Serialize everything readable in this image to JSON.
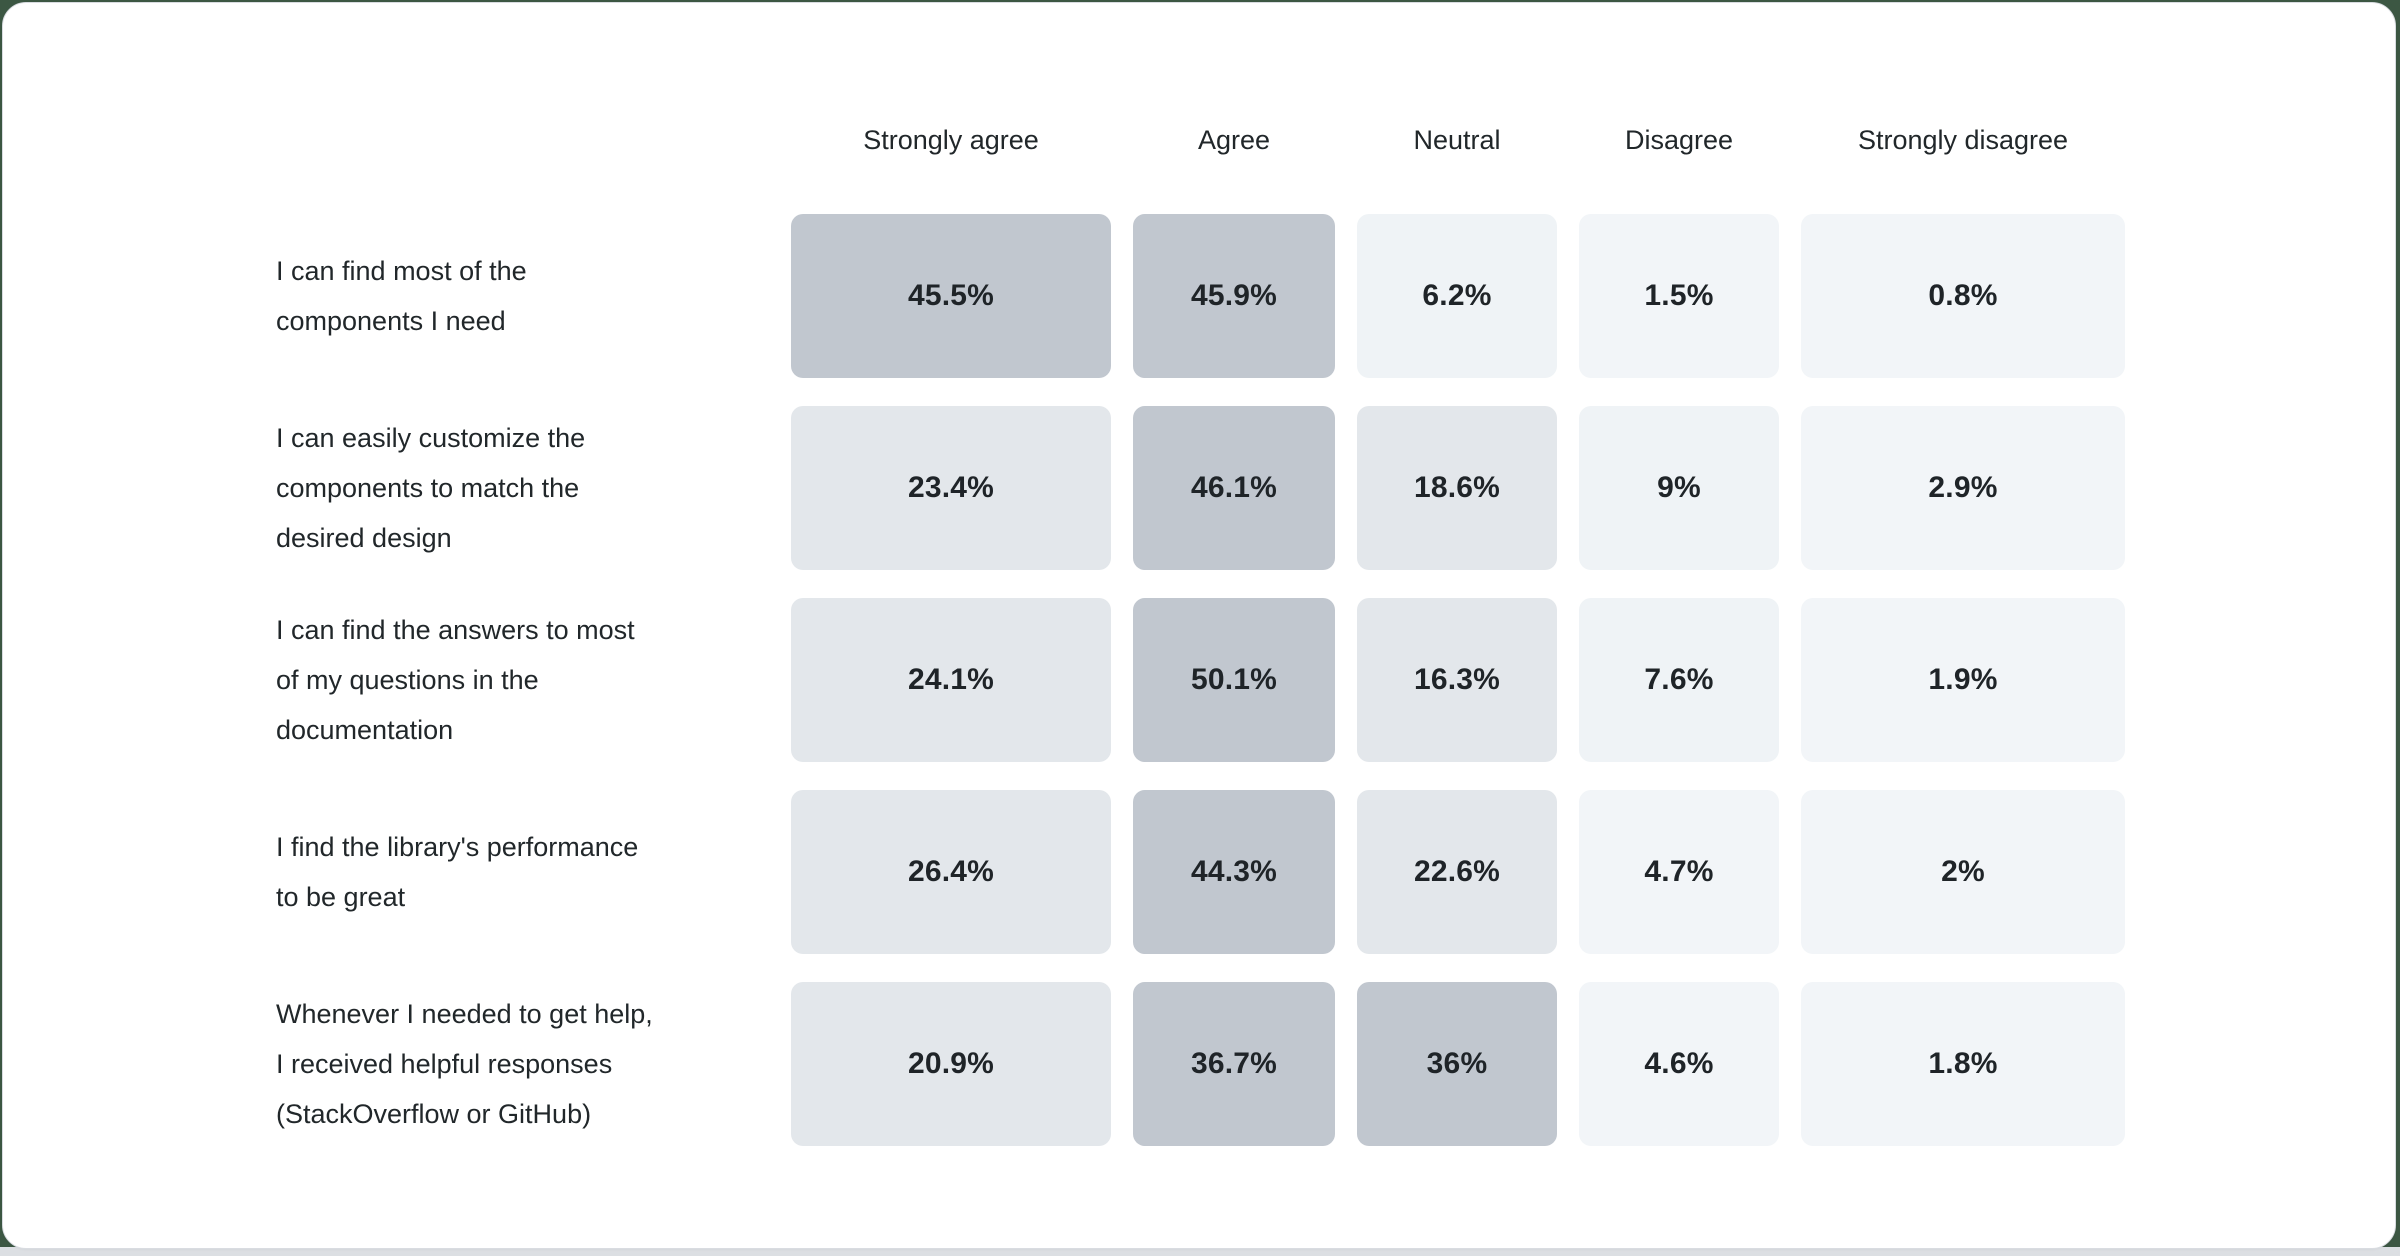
{
  "page": {
    "background_color": "#3c5743",
    "bottom_strip_color": "#dcdfe3",
    "card_color": "#ffffff",
    "card_border_color": "#d9dce1"
  },
  "chart_data": {
    "type": "heatmap",
    "title": "",
    "legend_position": "none",
    "grid": false,
    "columns": [
      "Strongly agree",
      "Agree",
      "Neutral",
      "Disagree",
      "Strongly disagree"
    ],
    "rows": [
      {
        "label": "I can find most of the components I need",
        "label_lines": [
          "I can find most of the",
          "components I need"
        ],
        "values": [
          45.5,
          45.9,
          6.2,
          1.5,
          0.8
        ],
        "display_values": [
          "45.5%",
          "45.9%",
          "6.2%",
          "1.5%",
          "0.8%"
        ]
      },
      {
        "label": "I can easily customize the components to match the desired design",
        "label_lines": [
          "I can easily customize the",
          "components to match the",
          "desired design"
        ],
        "values": [
          23.4,
          46.1,
          18.6,
          9,
          2.9
        ],
        "display_values": [
          "23.4%",
          "46.1%",
          "18.6%",
          "9%",
          "2.9%"
        ]
      },
      {
        "label": "I can find the answers to most of my questions in the documentation",
        "label_lines": [
          "I can find the answers to most",
          "of my questions in the",
          "documentation"
        ],
        "values": [
          24.1,
          50.1,
          16.3,
          7.6,
          1.9
        ],
        "display_values": [
          "24.1%",
          "50.1%",
          "16.3%",
          "7.6%",
          "1.9%"
        ]
      },
      {
        "label": "I find the library's performance to be great",
        "label_lines": [
          "I find the library's performance",
          "to be great"
        ],
        "values": [
          26.4,
          44.3,
          22.6,
          4.7,
          2
        ],
        "display_values": [
          "26.4%",
          "44.3%",
          "22.6%",
          "4.7%",
          "2%"
        ]
      },
      {
        "label": "Whenever I needed to get help, I received helpful responses (StackOverflow or GitHub)",
        "label_lines": [
          "Whenever I needed to get help,",
          "I received helpful responses",
          "(StackOverflow or GitHub)"
        ],
        "values": [
          20.9,
          36.7,
          36,
          4.6,
          1.8
        ],
        "display_values": [
          "20.9%",
          "36.7%",
          "36%",
          "4.6%",
          "1.8%"
        ]
      }
    ],
    "color_scale": [
      {
        "min": 30,
        "color": "#c1c7cf"
      },
      {
        "min": 12,
        "color": "#e3e7eb"
      },
      {
        "min": 5,
        "color": "#eff3f6"
      },
      {
        "min": 0,
        "color": "#f2f5f8"
      }
    ],
    "value_text_color": "#1f2428",
    "label_text_color": "#21272a"
  }
}
